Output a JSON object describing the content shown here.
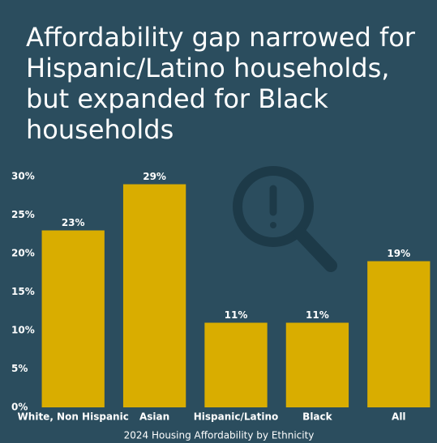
{
  "chart_data": {
    "type": "bar",
    "title": "Affordability gap narrowed for Hispanic/Latino households, but expanded for Black households",
    "x_label": "2024 Housing Affordability by Ethnicity",
    "categories": [
      "White, Non Hispanic",
      "Asian",
      "Hispanic/Latino",
      "Black",
      "All"
    ],
    "values": [
      23,
      29,
      11,
      11,
      19
    ],
    "value_labels": [
      "23%",
      "29%",
      "11%",
      "11%",
      "19%"
    ],
    "color": "#d9ad00",
    "ylim": [
      0,
      30
    ],
    "yticks": [
      {
        "value": 0,
        "label": "0%"
      },
      {
        "value": 5,
        "label": "5%"
      },
      {
        "value": 10,
        "label": "10%"
      },
      {
        "value": 15,
        "label": "15%"
      },
      {
        "value": 20,
        "label": "20%"
      },
      {
        "value": 25,
        "label": "25%"
      },
      {
        "value": 30,
        "label": "30%"
      }
    ],
    "grid": false
  }
}
